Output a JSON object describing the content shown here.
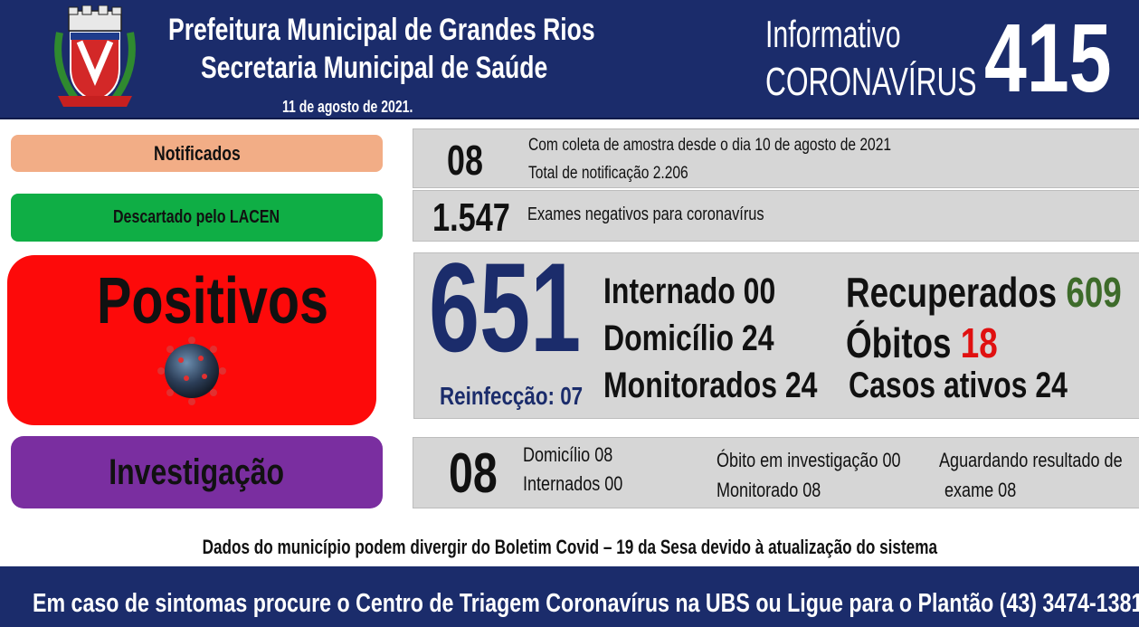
{
  "header": {
    "title_line1": "Prefeitura Municipal de Grandes Rios",
    "title_line2": "Secretaria Municipal de Saúde",
    "date": "11 de agosto de 2021.",
    "info_label": "Informativo",
    "info_topic": "CORONAVÍRUS",
    "bulletin_number": "415"
  },
  "notificados": {
    "label": "Notificados",
    "value": "08",
    "line1": "Com coleta de amostra desde o dia 10 de agosto de 2021",
    "line2": "Total de notificação 2.206"
  },
  "descartado": {
    "label": "Descartado  pelo LACEN",
    "value": "1.547",
    "text": "Exames negativos  para coronavírus"
  },
  "positivos": {
    "label": "Positivos",
    "value": "651",
    "reinfeccao": "Reinfecção: 07",
    "internado": "Internado 00",
    "domicilio": "Domicílio 24",
    "monitorados": "Monitorados 24",
    "recuperados_label": "Recuperados",
    "recuperados_value": "609",
    "obitos_label": "Óbitos",
    "obitos_value": "18",
    "casos_ativos": "Casos ativos 24"
  },
  "investigacao": {
    "label": "Investigação",
    "value": "08",
    "domicilio": "Domicílio 08",
    "internados": "Internados 00",
    "obito": "Óbito  em investigação  00",
    "monitorado": "Monitorado 08",
    "aguardando1": "Aguardando resultado de",
    "aguardando2": "exame 08"
  },
  "footer": {
    "note": "Dados do município  podem  divergir  do Boletim  Covid – 19 da Sesa devido à atualização  do sistema",
    "contact": "Em caso de sintomas  procure  o Centro de Triagem  Coronavírus  na UBS ou Ligue  para  o Plantão  (43) 3474-1381"
  },
  "colors": {
    "navy": "#1b2c6b",
    "recuperados": "#3d6b2a",
    "obitos": "#e01010",
    "notificados_pill": "#f2ad86",
    "descartado_pill": "#0fae45",
    "positivos_pill": "#fd0a0a",
    "investigacao_pill": "#7a2ea0"
  }
}
